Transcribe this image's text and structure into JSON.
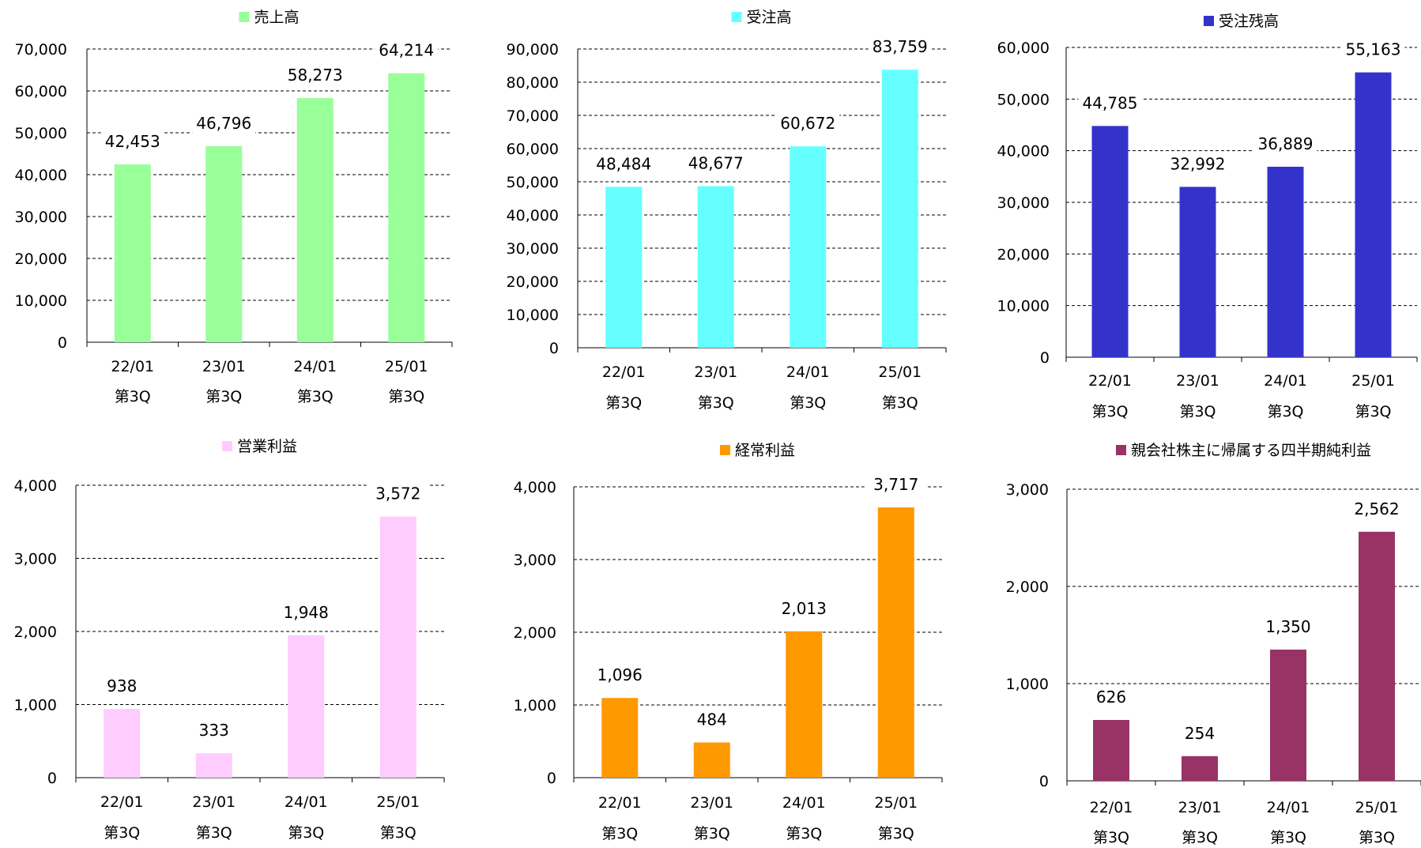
{
  "chart_data": [
    {
      "type": "bar",
      "series": [
        {
          "name": "売上高",
          "values": [
            42453,
            46796,
            58273,
            64214
          ],
          "color": "#99ff99"
        }
      ],
      "categories": [
        "22/01",
        "23/01",
        "24/01",
        "25/01"
      ],
      "category_sublabel": "第3Q",
      "yticks": [
        "0",
        "10,000",
        "20,000",
        "30,000",
        "40,000",
        "50,000",
        "60,000",
        "70,000"
      ],
      "data_labels": [
        "42,453",
        "46,796",
        "58,273",
        "64,214"
      ],
      "ylim": [
        0,
        70000
      ],
      "grid": true,
      "legend": "top-center"
    },
    {
      "type": "bar",
      "series": [
        {
          "name": "受注高",
          "values": [
            48484,
            48677,
            60672,
            83759
          ],
          "color": "#66ffff"
        }
      ],
      "categories": [
        "22/01",
        "23/01",
        "24/01",
        "25/01"
      ],
      "category_sublabel": "第3Q",
      "yticks": [
        "0",
        "10,000",
        "20,000",
        "30,000",
        "40,000",
        "50,000",
        "60,000",
        "70,000",
        "80,000",
        "90,000"
      ],
      "data_labels": [
        "48,484",
        "48,677",
        "60,672",
        "83,759"
      ],
      "ylim": [
        0,
        90000
      ],
      "grid": true,
      "legend": "top-center"
    },
    {
      "type": "bar",
      "series": [
        {
          "name": "受注残高",
          "values": [
            44785,
            32992,
            36889,
            55163
          ],
          "color": "#3333cc"
        }
      ],
      "categories": [
        "22/01",
        "23/01",
        "24/01",
        "25/01"
      ],
      "category_sublabel": "第3Q",
      "yticks": [
        "0",
        "10,000",
        "20,000",
        "30,000",
        "40,000",
        "50,000",
        "60,000"
      ],
      "data_labels": [
        "44,785",
        "32,992",
        "36,889",
        "55,163"
      ],
      "ylim": [
        0,
        60000
      ],
      "grid": true,
      "legend": "top-center"
    },
    {
      "type": "bar",
      "series": [
        {
          "name": "営業利益",
          "values": [
            938,
            333,
            1948,
            3572
          ],
          "color": "#ffccff"
        }
      ],
      "categories": [
        "22/01",
        "23/01",
        "24/01",
        "25/01"
      ],
      "category_sublabel": "第3Q",
      "yticks": [
        "0",
        "1,000",
        "2,000",
        "3,000",
        "4,000"
      ],
      "data_labels": [
        "938",
        "333",
        "1,948",
        "3,572"
      ],
      "ylim": [
        0,
        4000
      ],
      "grid": true,
      "legend": "top-center"
    },
    {
      "type": "bar",
      "series": [
        {
          "name": "経常利益",
          "values": [
            1096,
            484,
            2013,
            3717
          ],
          "color": "#ff9900"
        }
      ],
      "categories": [
        "22/01",
        "23/01",
        "24/01",
        "25/01"
      ],
      "category_sublabel": "第3Q",
      "yticks": [
        "0",
        "1,000",
        "2,000",
        "3,000",
        "4,000"
      ],
      "data_labels": [
        "1,096",
        "484",
        "2,013",
        "3,717"
      ],
      "ylim": [
        0,
        4000
      ],
      "grid": true,
      "legend": "top-center"
    },
    {
      "type": "bar",
      "series": [
        {
          "name": "親会社株主に帰属する四半期純利益",
          "values": [
            626,
            254,
            1350,
            2562
          ],
          "color": "#993366"
        }
      ],
      "categories": [
        "22/01",
        "23/01",
        "24/01",
        "25/01"
      ],
      "category_sublabel": "第3Q",
      "yticks": [
        "0",
        "1,000",
        "2,000",
        "3,000"
      ],
      "data_labels": [
        "626",
        "254",
        "1,350",
        "2,562"
      ],
      "ylim": [
        0,
        3000
      ],
      "grid": true,
      "legend": "top-center"
    }
  ]
}
